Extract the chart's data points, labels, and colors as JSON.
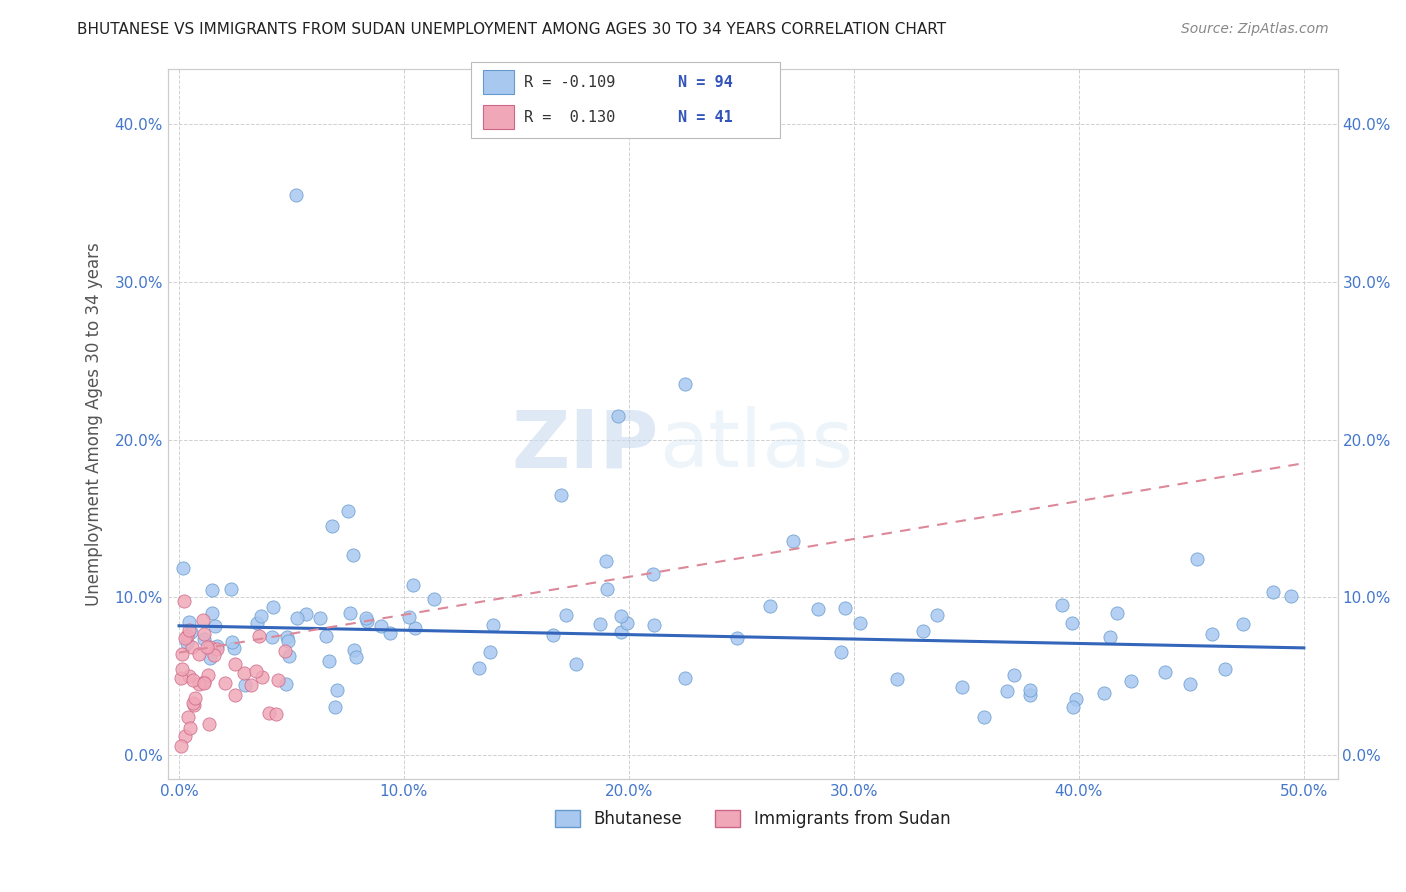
{
  "title": "BHUTANESE VS IMMIGRANTS FROM SUDAN UNEMPLOYMENT AMONG AGES 30 TO 34 YEARS CORRELATION CHART",
  "source": "Source: ZipAtlas.com",
  "ylabel": "Unemployment Among Ages 30 to 34 years",
  "xlim": [
    0.0,
    0.5
  ],
  "ylim": [
    0.0,
    0.42
  ],
  "xticks": [
    0.0,
    0.1,
    0.2,
    0.3,
    0.4,
    0.5
  ],
  "yticks": [
    0.0,
    0.1,
    0.2,
    0.3,
    0.4
  ],
  "color_bhutanese": "#a8c8f0",
  "edge_bhutanese": "#6699cc",
  "color_sudan": "#f0a8b8",
  "edge_sudan": "#cc6688",
  "trend_bhutanese_color": "#3366bb",
  "trend_sudan_color": "#dd8899",
  "watermark_color": "#dde8f5",
  "legend_r1": "R = -0.109",
  "legend_n1": "N = 94",
  "legend_r2": "R =  0.130",
  "legend_n2": "N = 41",
  "label_bhutanese": "Bhutanese",
  "label_sudan": "Immigrants from Sudan",
  "tick_color": "#4477cc",
  "title_color": "#222222",
  "ylabel_color": "#555555",
  "source_color": "#888888",
  "grid_color": "#cccccc",
  "trend_b_x0": 0.0,
  "trend_b_y0": 0.082,
  "trend_b_x1": 0.5,
  "trend_b_y1": 0.068,
  "trend_s_x0": 0.0,
  "trend_s_y0": 0.065,
  "trend_s_x1": 0.5,
  "trend_s_y1": 0.185
}
